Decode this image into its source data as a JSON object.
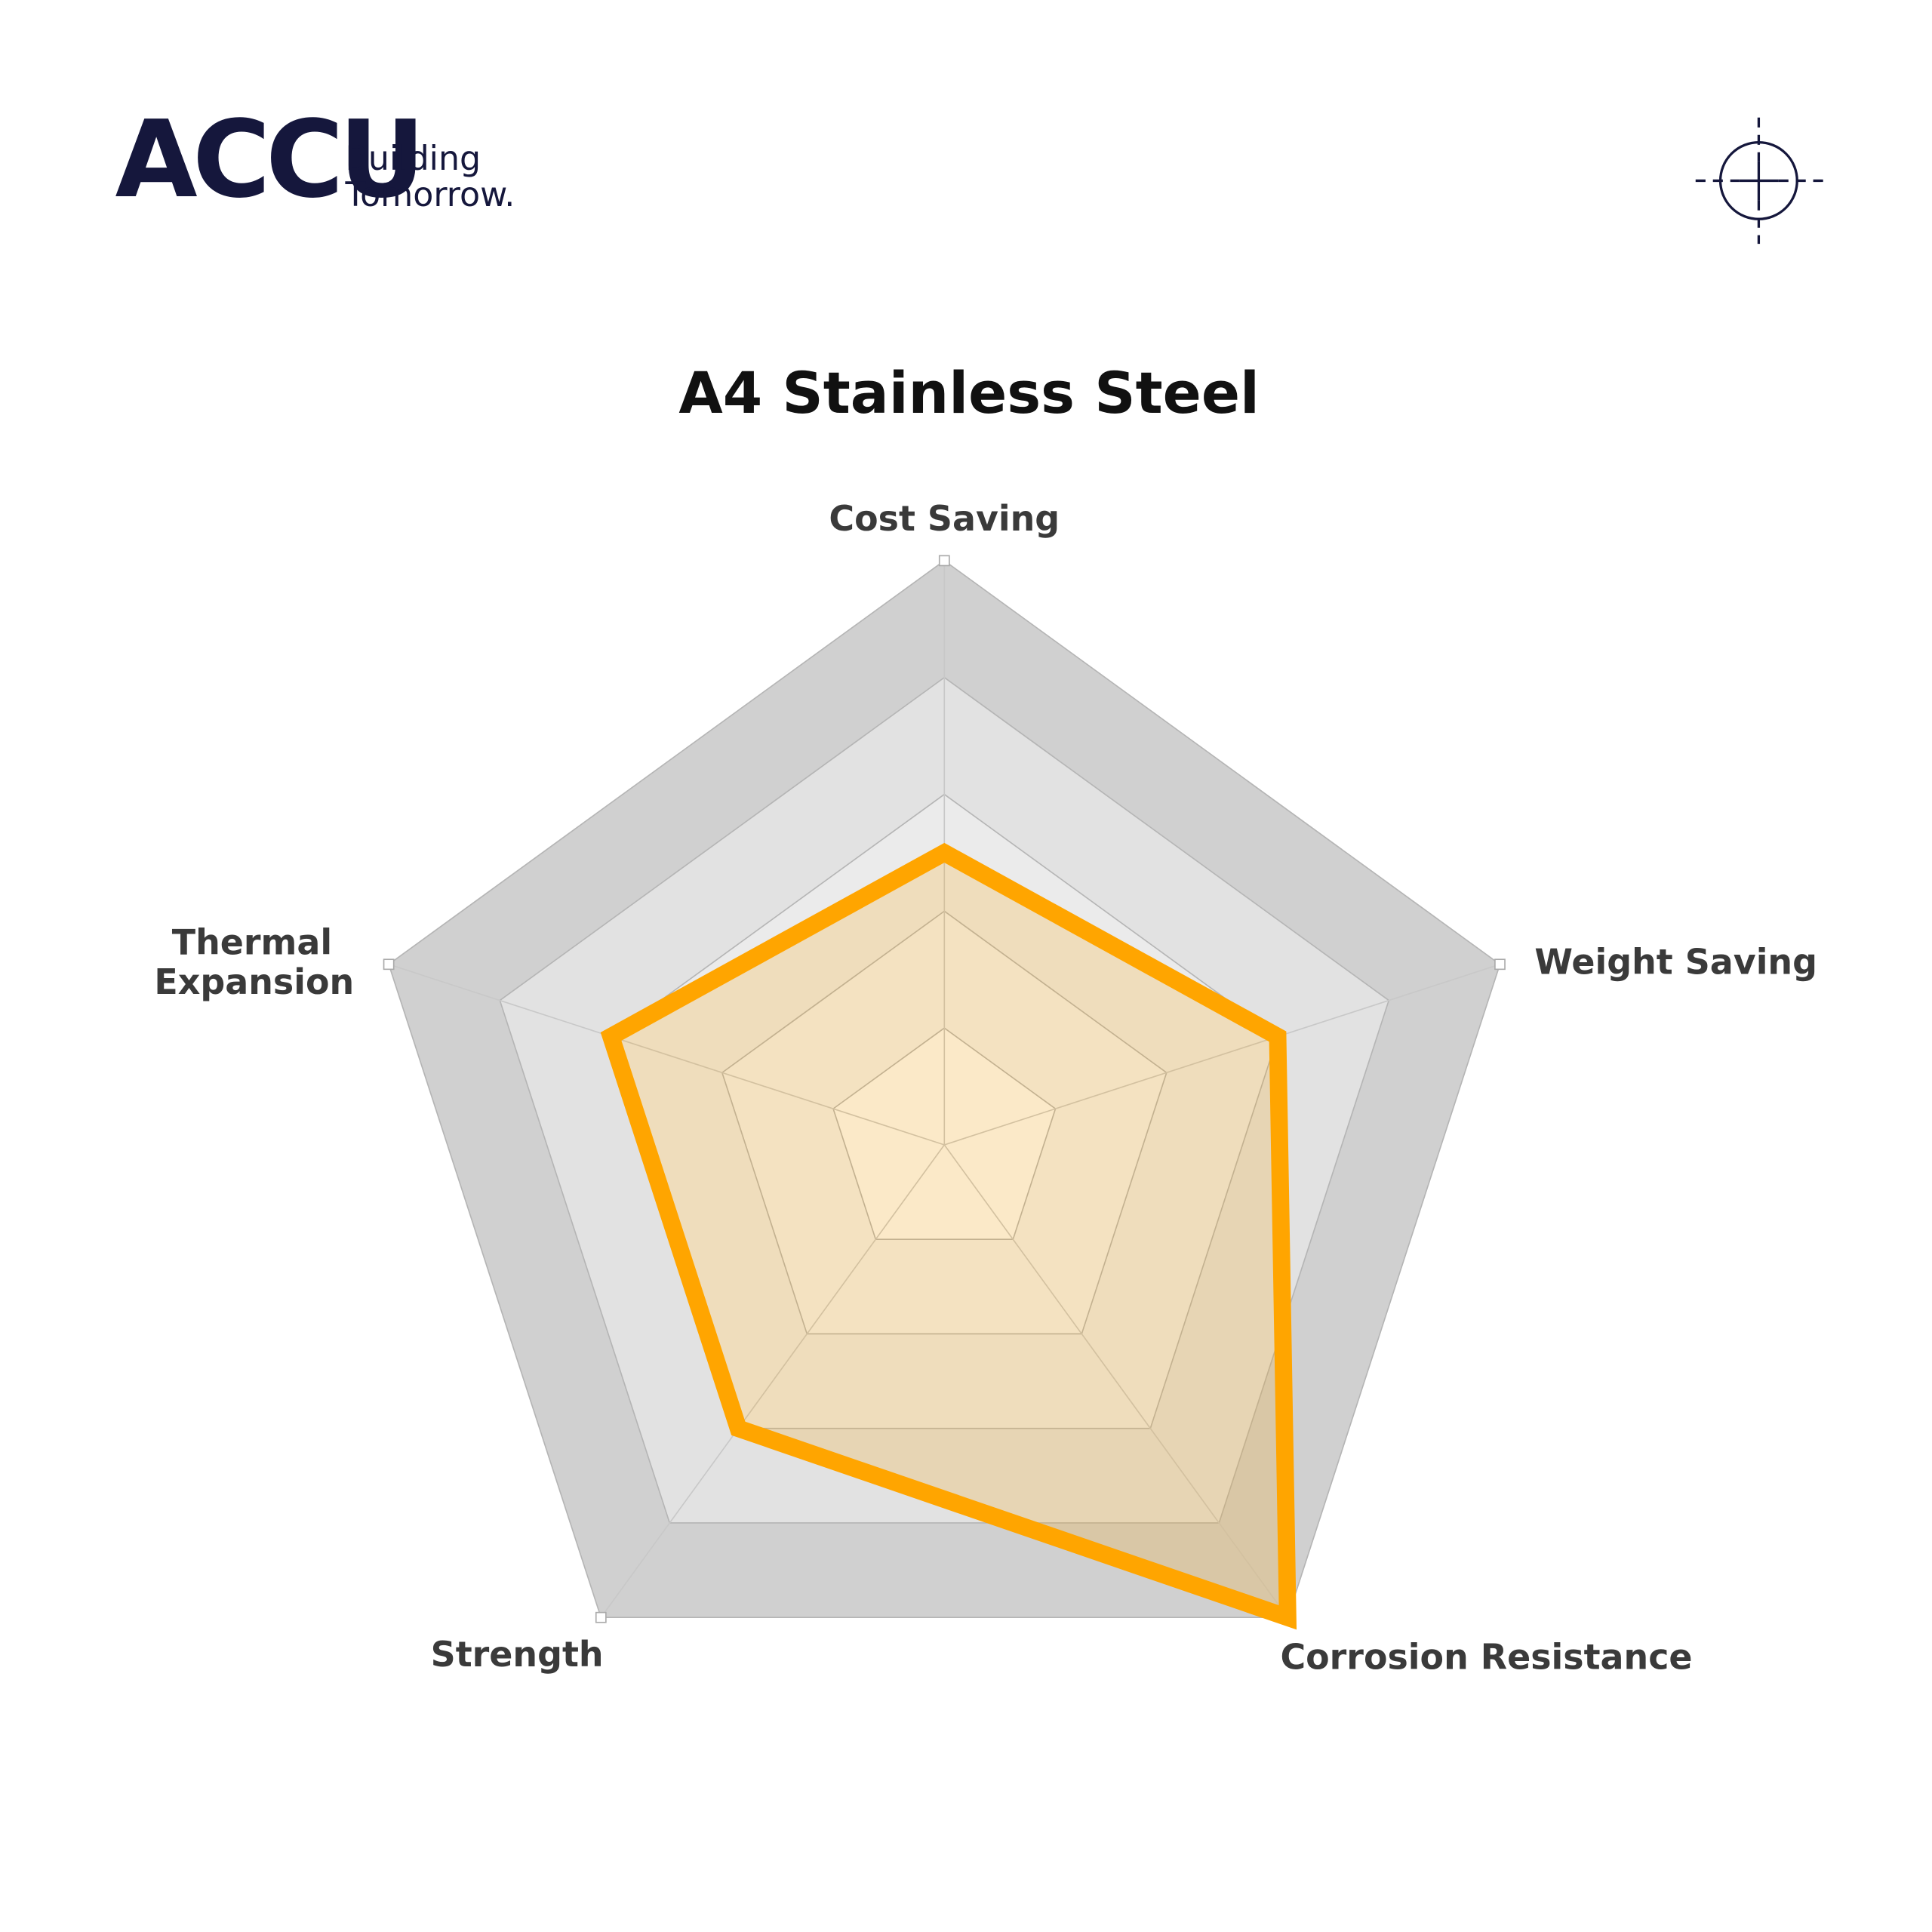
{
  "header": {
    "logo": "ACCU",
    "tagline_line1": "Building",
    "tagline_line2": "Tomorrow."
  },
  "chart_data": {
    "type": "radar",
    "title": "A4 Stainless Steel",
    "categories": [
      "Cost Saving",
      "Weight Saving",
      "Corrosion Resistance",
      "Strength",
      "Thermal Expansion"
    ],
    "values": [
      2.5,
      3,
      5,
      3,
      3
    ],
    "color": "#ffa500",
    "rlim": [
      0,
      5
    ],
    "rticks": [
      1,
      2,
      3,
      4,
      5
    ],
    "grid": true
  }
}
